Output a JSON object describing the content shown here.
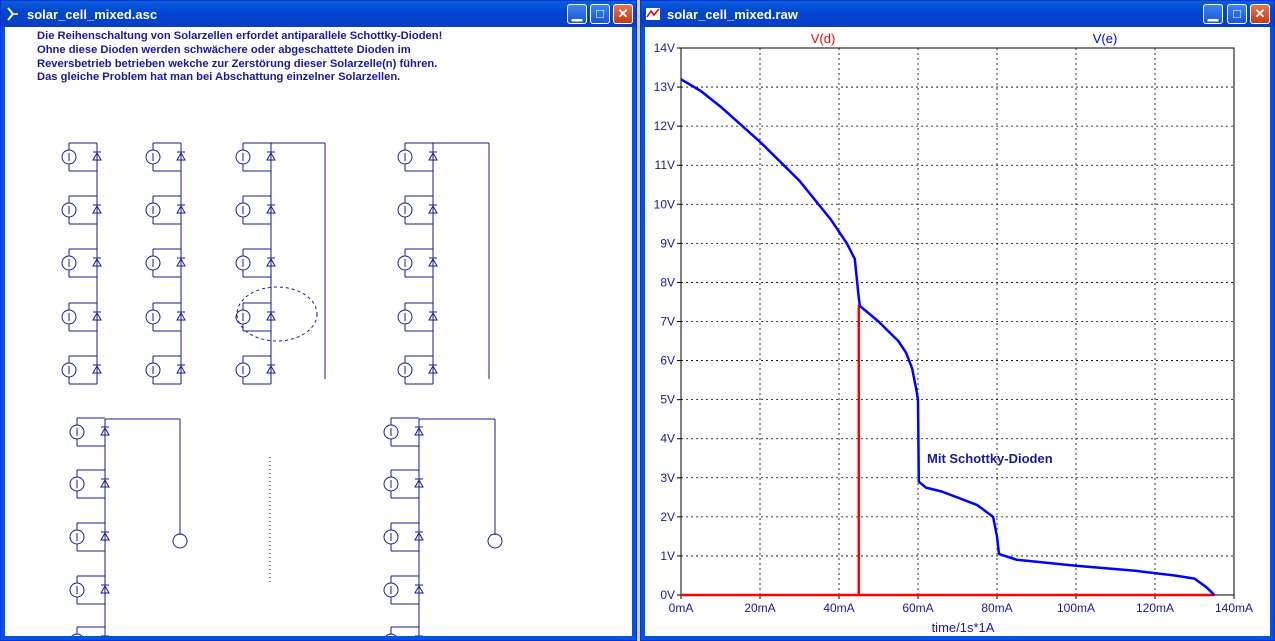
{
  "left_window": {
    "title": "solar_cell_mixed.asc",
    "note_lines": [
      "Die Reihenschaltung von Solarzellen erfordet antiparallele Schottky-Dioden!",
      "Ohne diese Dioden werden schwächere oder abgeschattete Dioden im",
      "Reversbetrieb betrieben wekche zur Zerstörung dieser Solarzelle(n) führen.",
      "Das gleiche Problem hat man bei Abschattung einzelner Solarzellen."
    ]
  },
  "right_window": {
    "title": "solar_cell_mixed.raw",
    "trace1_name": "V(d)",
    "trace2_name": "V(e)",
    "annotation": "Mit Schottky-Dioden",
    "x_axis_label": "time/1s*1A"
  },
  "colors": {
    "trace1": "#ff0000",
    "trace2": "#0000ff",
    "label_blue": "#1a1a9a",
    "titlebar": "#0054e3"
  },
  "chart_data": {
    "type": "line",
    "xlabel": "time/1s*1A",
    "ylabel": "",
    "x_ticks": [
      "0mA",
      "20mA",
      "40mA",
      "60mA",
      "80mA",
      "100mA",
      "120mA",
      "140mA"
    ],
    "y_ticks": [
      "0V",
      "1V",
      "2V",
      "3V",
      "4V",
      "5V",
      "6V",
      "7V",
      "8V",
      "9V",
      "10V",
      "11V",
      "12V",
      "13V",
      "14V"
    ],
    "xlim": [
      0,
      140
    ],
    "ylim": [
      0,
      14
    ],
    "grid": true,
    "series": [
      {
        "name": "V(d)",
        "color": "#ff0000",
        "x": [
          0,
          45,
          45,
          45,
          135
        ],
        "y": [
          0,
          0,
          7.4,
          0,
          0
        ]
      },
      {
        "name": "V(e)",
        "color": "#0000ff",
        "x": [
          0,
          5,
          10,
          20,
          30,
          38,
          42,
          44,
          45,
          45.3,
          50,
          55,
          57,
          58.5,
          59.5,
          60,
          60.2,
          62,
          66,
          75,
          79,
          80,
          80.5,
          85,
          100,
          115,
          125,
          130,
          133,
          135
        ],
        "y": [
          13.2,
          12.9,
          12.5,
          11.6,
          10.6,
          9.6,
          9.0,
          8.6,
          7.6,
          7.4,
          7.0,
          6.5,
          6.2,
          5.8,
          5.3,
          5.0,
          2.9,
          2.75,
          2.65,
          2.3,
          2.0,
          1.5,
          1.05,
          0.9,
          0.75,
          0.62,
          0.5,
          0.42,
          0.2,
          0.0
        ]
      }
    ]
  }
}
